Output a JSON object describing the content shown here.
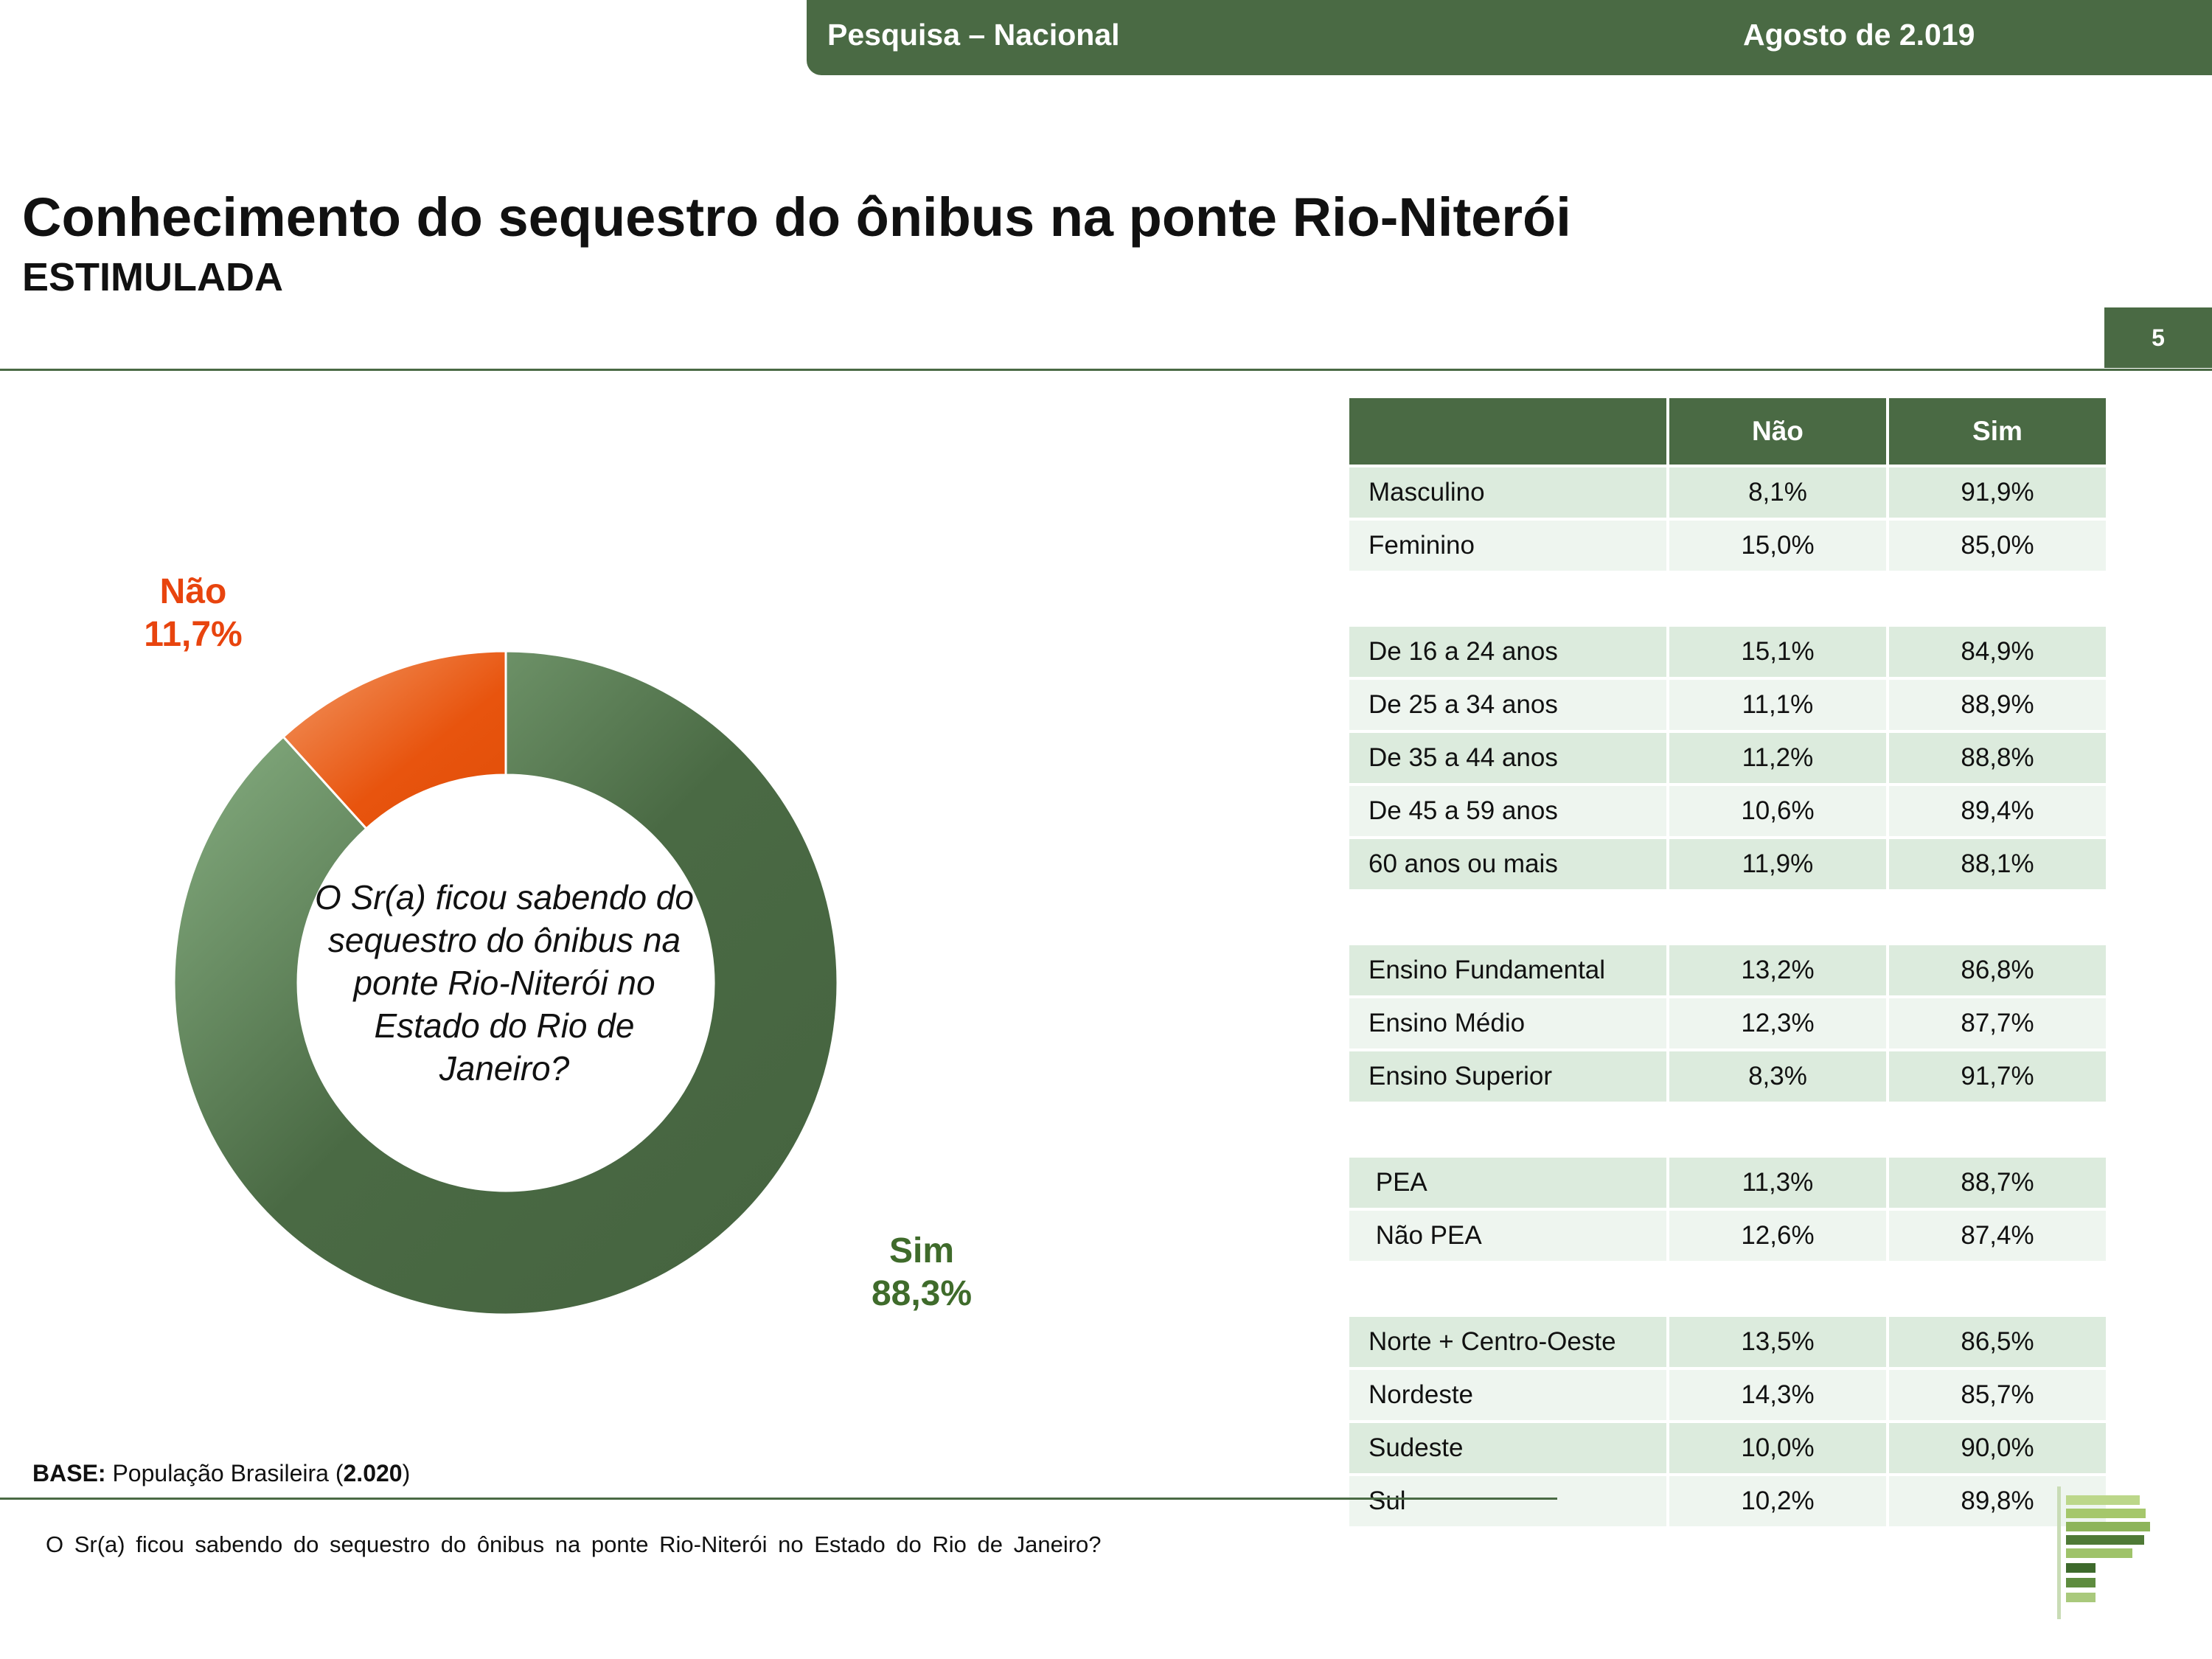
{
  "header": {
    "left": "Pesquisa – Nacional",
    "right": "Agosto de 2.019"
  },
  "title": "Conhecimento do sequestro do ônibus na ponte Rio-Niterói",
  "subtitle": "ESTIMULADA",
  "page_number": "5",
  "chart_data": {
    "type": "pie",
    "variant": "donut",
    "center_text": "O Sr(a) ficou sabendo do sequestro do ônibus na ponte Rio-Niterói no Estado do Rio de Janeiro?",
    "slices": [
      {
        "label": "Sim",
        "value": 88.3,
        "display": "88,3%",
        "color": "#4a6a44"
      },
      {
        "label": "Não",
        "value": 11.7,
        "display": "11,7%",
        "color": "#e8540e"
      }
    ]
  },
  "table": {
    "headers": [
      "",
      "Não",
      "Sim"
    ],
    "groups": [
      [
        [
          "Masculino",
          "8,1%",
          "91,9%"
        ],
        [
          "Feminino",
          "15,0%",
          "85,0%"
        ]
      ],
      [
        [
          "De 16 a 24 anos",
          "15,1%",
          "84,9%"
        ],
        [
          "De 25 a 34 anos",
          "11,1%",
          "88,9%"
        ],
        [
          "De 35 a 44 anos",
          "11,2%",
          "88,8%"
        ],
        [
          "De 45 a 59 anos",
          "10,6%",
          "89,4%"
        ],
        [
          "60 anos ou mais",
          "11,9%",
          "88,1%"
        ]
      ],
      [
        [
          "Ensino Fundamental",
          "13,2%",
          "86,8%"
        ],
        [
          "Ensino Médio",
          "12,3%",
          "87,7%"
        ],
        [
          "Ensino Superior",
          "8,3%",
          "91,7%"
        ]
      ],
      [
        [
          " PEA",
          "11,3%",
          "88,7%"
        ],
        [
          " Não PEA",
          "12,6%",
          "87,4%"
        ]
      ],
      [
        [
          "Norte + Centro-Oeste",
          "13,5%",
          "86,5%"
        ],
        [
          "Nordeste",
          "14,3%",
          "85,7%"
        ],
        [
          "Sudeste",
          "10,0%",
          "90,0%"
        ],
        [
          "Sul",
          "10,2%",
          "89,8%"
        ]
      ]
    ]
  },
  "base": {
    "label": "BASE:",
    "text": "População Brasileira",
    "count": "2.020"
  },
  "footer_question": "O Sr(a) ficou sabendo do sequestro do ônibus na ponte Rio-Niterói no Estado do Rio de Janeiro?"
}
